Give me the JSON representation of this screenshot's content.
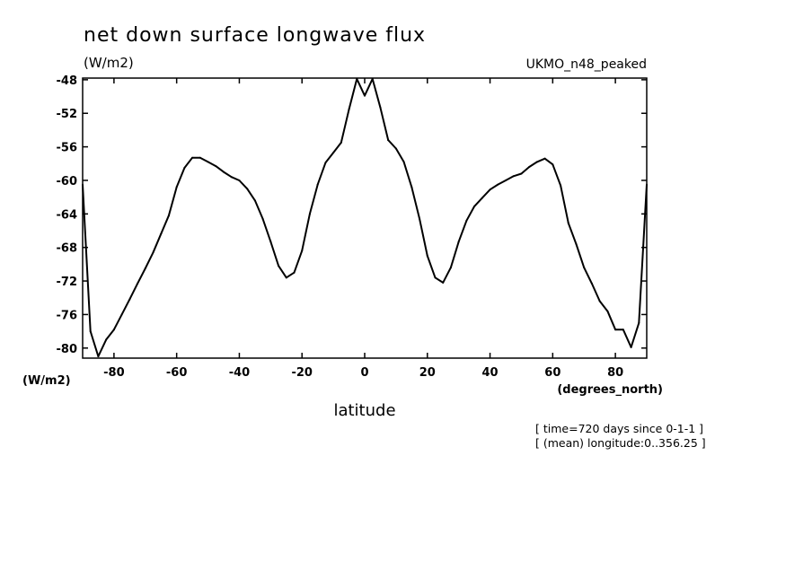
{
  "chart_data": {
    "type": "line",
    "title": "net down surface longwave flux",
    "ylabel": "(W/m2)",
    "xlabel": "latitude",
    "x_units": "(degrees_north)",
    "y_units_bottom": "(W/m2)",
    "model_label": "UKMO_n48_peaked",
    "annotations": [
      "[ time=720 days since 0-1-1 ]",
      "[ (mean) longitude:0..356.25 ]"
    ],
    "xlim": [
      -90,
      90
    ],
    "ylim": [
      -81.2,
      -47.8
    ],
    "x_ticks": [
      -80,
      -60,
      -40,
      -20,
      0,
      20,
      40,
      60,
      80
    ],
    "x_tick_labels": [
      "-80",
      "-60",
      "-40",
      "-20",
      "0",
      "20",
      "40",
      "60",
      "80"
    ],
    "y_ticks": [
      -48,
      -52,
      -56,
      -60,
      -64,
      -68,
      -72,
      -76,
      -80
    ],
    "y_tick_labels": [
      "-48",
      "-52",
      "-56",
      "-60",
      "-64",
      "-68",
      "-72",
      "-76",
      "-80"
    ],
    "grid": false,
    "series": [
      {
        "x": [
          -90,
          -87.5,
          -85,
          -82.5,
          -80,
          -77.5,
          -75,
          -72.5,
          -70,
          -67.5,
          -65,
          -62.5,
          -60,
          -57.5,
          -55,
          -52.5,
          -50,
          -47.5,
          -45,
          -42.5,
          -40,
          -37.5,
          -35,
          -32.5,
          -30,
          -27.5,
          -25,
          -22.5,
          -20,
          -17.5,
          -15,
          -12.5,
          -10,
          -7.5,
          -5,
          -2.5,
          0,
          2.5,
          5,
          7.5,
          10,
          12.5,
          15,
          17.5,
          20,
          22.5,
          25,
          27.5,
          30,
          32.5,
          35,
          37.5,
          40,
          42.5,
          45,
          47.5,
          50,
          52.5,
          55,
          57.5,
          60,
          62.5,
          65,
          67.5,
          70,
          72.5,
          75,
          77.5,
          80,
          82.5,
          85,
          87.5,
          90
        ],
        "y": [
          -60.5,
          -78.0,
          -81.0,
          -79.0,
          -77.8,
          -76.0,
          -74.2,
          -72.3,
          -70.5,
          -68.6,
          -66.4,
          -64.2,
          -60.8,
          -58.5,
          -57.3,
          -57.3,
          -57.8,
          -58.3,
          -59.0,
          -59.6,
          -60.0,
          -61.0,
          -62.4,
          -64.6,
          -67.3,
          -70.2,
          -71.6,
          -71.0,
          -68.4,
          -64.0,
          -60.5,
          -57.9,
          -56.7,
          -55.5,
          -51.5,
          -47.9,
          -49.9,
          -47.9,
          -51.3,
          -55.2,
          -56.2,
          -57.8,
          -60.8,
          -64.6,
          -69.0,
          -71.6,
          -72.2,
          -70.4,
          -67.3,
          -64.8,
          -63.1,
          -62.1,
          -61.1,
          -60.5,
          -60.0,
          -59.5,
          -59.2,
          -58.4,
          -57.8,
          -57.4,
          -58.1,
          -60.6,
          -65.1,
          -67.6,
          -70.4,
          -72.3,
          -74.4,
          -75.6,
          -77.8,
          -77.8,
          -79.9,
          -77.0,
          -60.5
        ]
      }
    ]
  }
}
